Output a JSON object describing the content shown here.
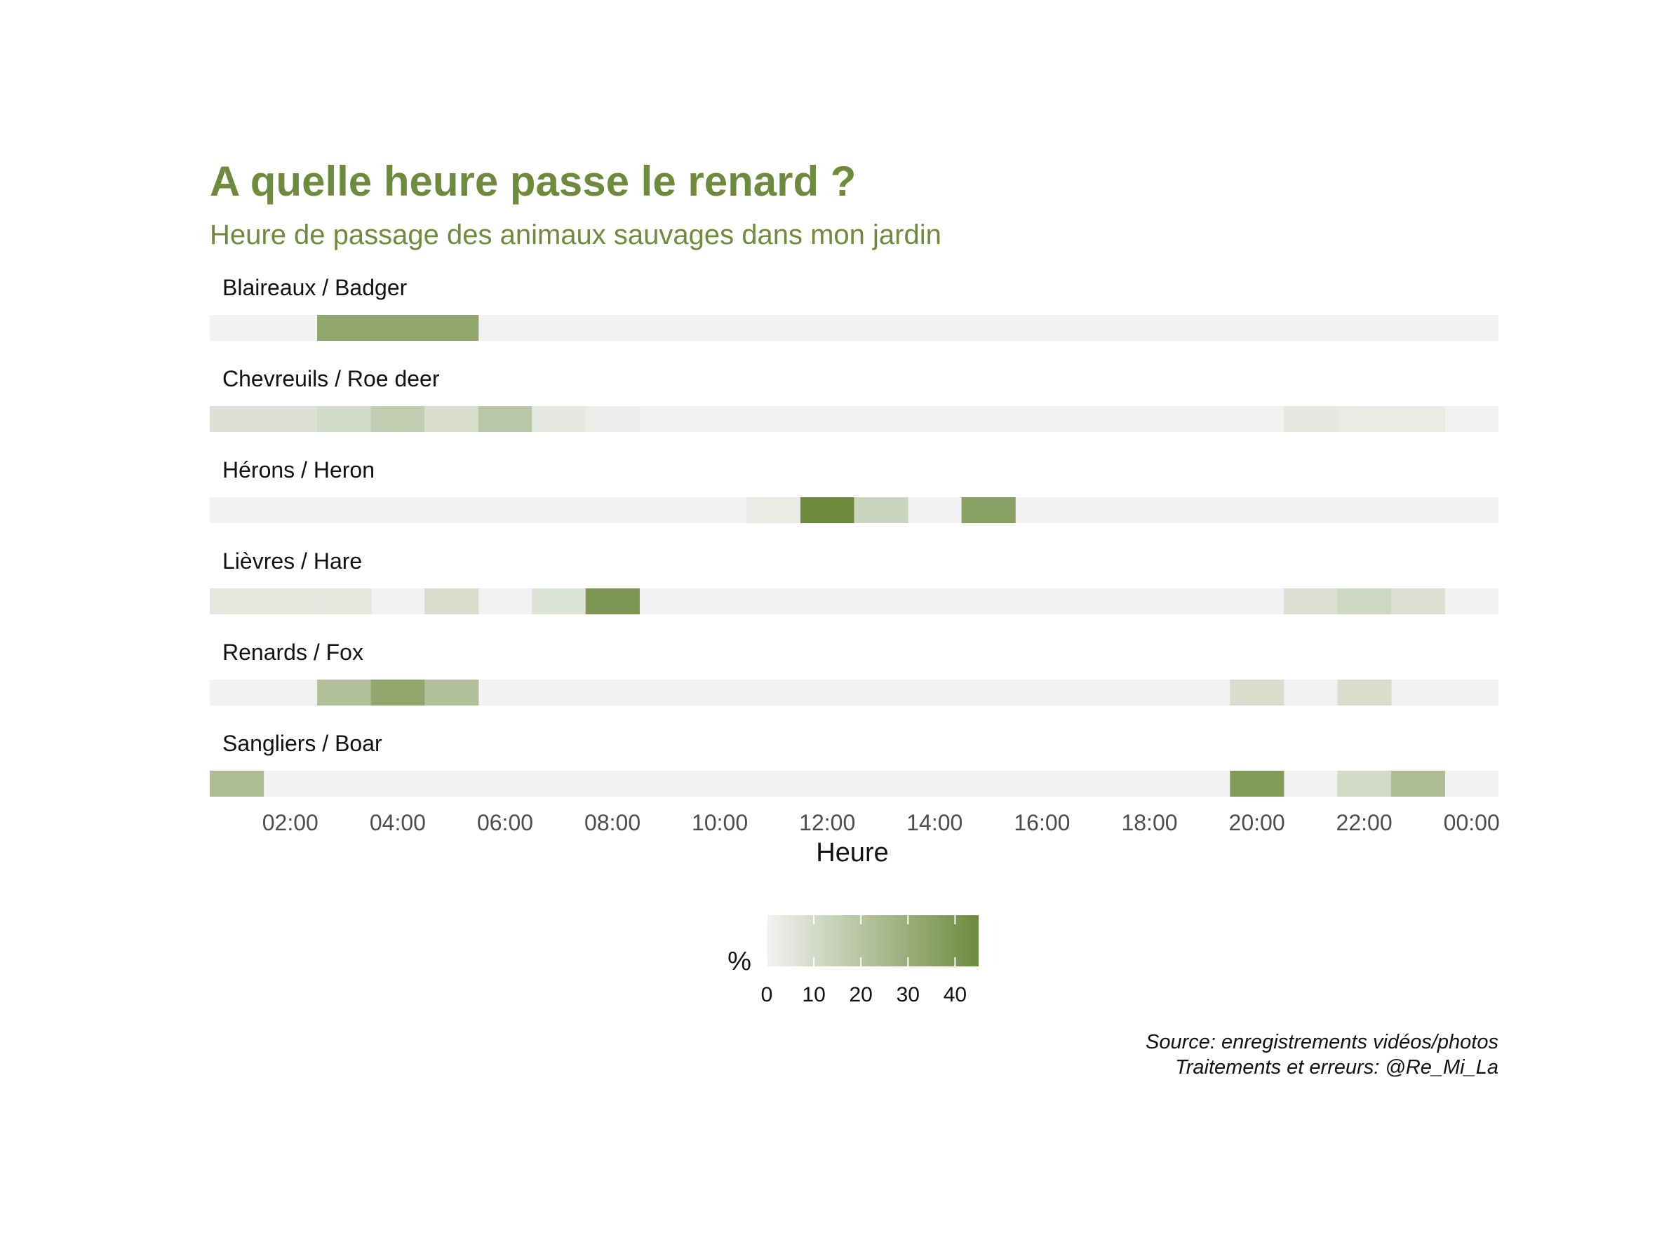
{
  "chart_data": {
    "type": "heatmap",
    "title": "A quelle heure passe le renard ?",
    "subtitle": "Heure de passage des animaux sauvages dans mon jardin",
    "xlabel": "Heure",
    "x_tick_labels": [
      "02:00",
      "04:00",
      "06:00",
      "08:00",
      "10:00",
      "12:00",
      "14:00",
      "16:00",
      "18:00",
      "20:00",
      "22:00",
      "00:00"
    ],
    "x_hours": [
      1,
      2,
      3,
      4,
      5,
      6,
      7,
      8,
      9,
      10,
      11,
      12,
      13,
      14,
      15,
      16,
      17,
      18,
      19,
      20,
      21,
      22,
      23,
      24
    ],
    "legend": {
      "title": "%",
      "ticks": [
        0,
        10,
        20,
        30,
        40
      ],
      "min": 0,
      "max": 45
    },
    "colors": {
      "title": "#6e8b3d",
      "low": "#f2f2f2",
      "high": "#6e8b3d",
      "panel": "#f2f2f2"
    },
    "series": [
      {
        "name": "Blaireaux / Badger",
        "values": [
          null,
          null,
          33,
          33,
          33,
          null,
          null,
          null,
          null,
          null,
          null,
          null,
          null,
          null,
          null,
          null,
          null,
          null,
          null,
          null,
          null,
          null,
          null,
          null
        ]
      },
      {
        "name": "Chevreuils / Roe deer",
        "values": [
          8,
          8,
          11,
          16,
          9,
          19,
          4,
          2,
          null,
          null,
          null,
          null,
          null,
          null,
          null,
          null,
          null,
          null,
          null,
          null,
          4,
          3,
          3,
          null
        ]
      },
      {
        "name": "Hérons / Heron",
        "values": [
          null,
          null,
          null,
          null,
          null,
          null,
          null,
          null,
          null,
          null,
          3,
          45,
          13,
          null,
          36,
          null,
          null,
          null,
          null,
          null,
          null,
          null,
          null,
          null
        ]
      },
      {
        "name": "Lièvres / Hare",
        "values": [
          5,
          5,
          5,
          null,
          9,
          null,
          7,
          40,
          null,
          null,
          null,
          null,
          null,
          null,
          null,
          null,
          null,
          null,
          null,
          null,
          8,
          12,
          8,
          null
        ]
      },
      {
        "name": "Renards / Fox",
        "values": [
          null,
          null,
          22,
          33,
          22,
          null,
          null,
          null,
          null,
          null,
          null,
          null,
          null,
          null,
          null,
          null,
          null,
          null,
          null,
          9,
          null,
          9,
          null,
          null
        ]
      },
      {
        "name": "Sangliers / Boar",
        "values": [
          23,
          null,
          null,
          null,
          null,
          null,
          null,
          null,
          null,
          null,
          null,
          null,
          null,
          null,
          null,
          null,
          null,
          null,
          null,
          38,
          null,
          11,
          23,
          null
        ]
      }
    ],
    "caption": [
      "Source: enregistrements vidéos/photos",
      "Traitements et erreurs: @Re_Mi_La"
    ]
  }
}
